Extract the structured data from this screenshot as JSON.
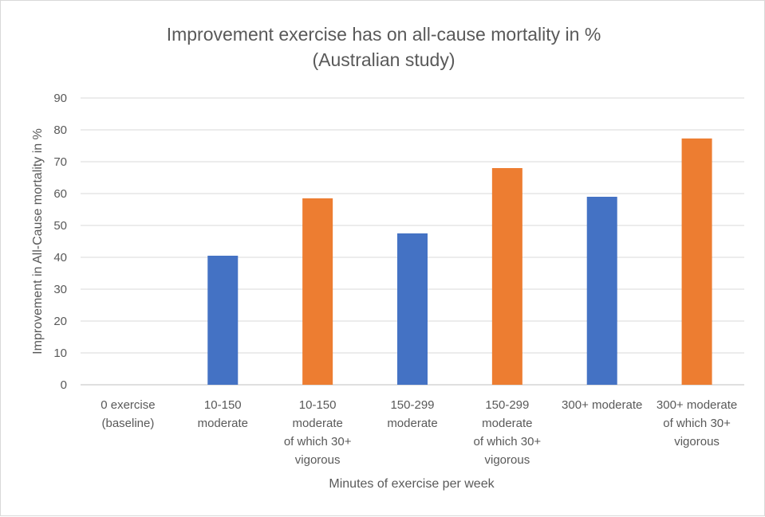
{
  "chart_data": {
    "type": "bar",
    "title": [
      "Improvement exercise has on all-cause mortality in %",
      "(Australian study)"
    ],
    "xlabel": "Minutes of exercise per week",
    "ylabel": "Improvement in All-Cause mortality in %",
    "ylim": [
      0,
      90
    ],
    "yticks": [
      0,
      10,
      20,
      30,
      40,
      50,
      60,
      70,
      80,
      90
    ],
    "grid": true,
    "categories": [
      [
        "0 exercise",
        "(baseline)"
      ],
      [
        "10-150",
        "moderate"
      ],
      [
        "10-150",
        "moderate",
        "of which 30+",
        "vigorous"
      ],
      [
        "150-299",
        "moderate"
      ],
      [
        "150-299",
        "moderate",
        "of which 30+",
        "vigorous"
      ],
      [
        "300+ moderate"
      ],
      [
        "300+ moderate",
        "of which 30+",
        "vigorous"
      ]
    ],
    "values": [
      0,
      40.5,
      58.5,
      47.5,
      68,
      59,
      77.3
    ],
    "bar_colors": [
      "#4472c4",
      "#4472c4",
      "#ed7d31",
      "#4472c4",
      "#ed7d31",
      "#4472c4",
      "#ed7d31"
    ]
  },
  "colors": {
    "text": "#595959",
    "grid": "#d9d9d9",
    "axis": "#bfbfbf",
    "moderate": "#4472c4",
    "vigorous": "#ed7d31"
  }
}
